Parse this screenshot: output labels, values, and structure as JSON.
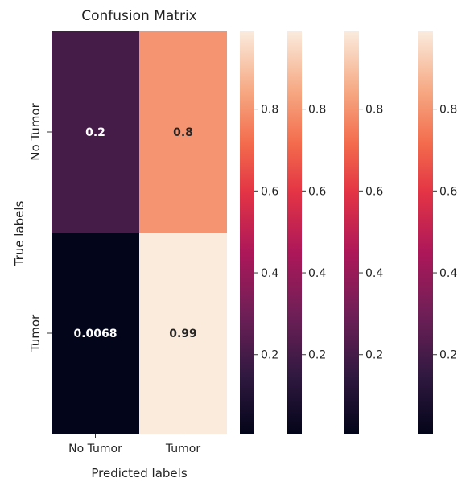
{
  "chart_data": {
    "type": "heatmap",
    "title": "Confusion Matrix",
    "xlabel": "Predicted labels",
    "ylabel": "True labels",
    "x_categories": [
      "No Tumor",
      "Tumor"
    ],
    "y_categories": [
      "No Tumor",
      "Tumor"
    ],
    "values": [
      [
        0.2,
        0.8
      ],
      [
        0.0068,
        0.99
      ]
    ],
    "value_labels": [
      [
        "0.2",
        "0.8"
      ],
      [
        "0.0068",
        "0.99"
      ]
    ],
    "colorscale": "rocket",
    "vmin": 0.0068,
    "vmax": 0.99,
    "colorbar_count": 4,
    "colorbar_ticks": [
      0.2,
      0.4,
      0.6,
      0.8
    ],
    "colorbar_tick_labels": [
      "0.2",
      "0.4",
      "0.6",
      "0.8"
    ]
  }
}
